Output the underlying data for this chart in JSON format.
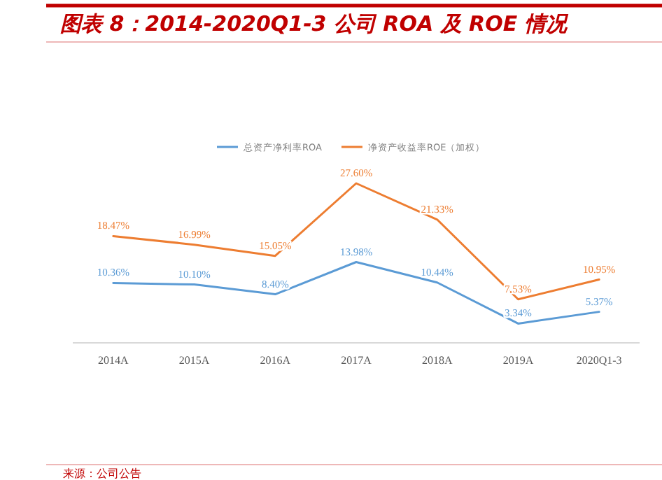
{
  "chart_data": {
    "type": "line",
    "title": "图表 8：2014-2020Q1-3 公司 ROA 及 ROE 情况",
    "categories": [
      "2014A",
      "2015A",
      "2016A",
      "2017A",
      "2018A",
      "2019A",
      "2020Q1-3"
    ],
    "legend": "top",
    "marker": "none",
    "line_style": "solid",
    "series": [
      {
        "name": "总资产净利率ROA",
        "color": "#5b9bd5",
        "values": [
          10.36,
          10.1,
          8.4,
          13.98,
          10.44,
          3.34,
          5.37
        ],
        "value_labels": [
          "10.36%",
          "10.10%",
          "8.40%",
          "13.98%",
          "10.44%",
          "3.34%",
          "5.37%"
        ]
      },
      {
        "name": "净资产收益率ROE（加权）",
        "color": "#ed7d31",
        "values": [
          18.47,
          16.99,
          15.05,
          27.6,
          21.33,
          7.53,
          10.95
        ],
        "value_labels": [
          "18.47%",
          "16.99%",
          "15.05%",
          "27.60%",
          "21.33%",
          "7.53%",
          "10.95%"
        ]
      }
    ],
    "annotations": [
      "来源：公司公告"
    ]
  }
}
